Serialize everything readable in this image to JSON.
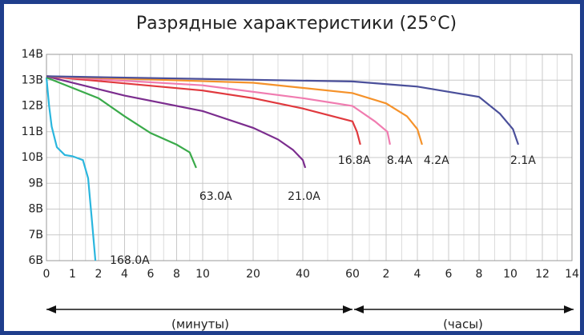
{
  "chart_data": {
    "type": "line",
    "title": "Разрядные характеристики (25°C)",
    "ylim": [
      6,
      14
    ],
    "yticks": [
      {
        "value": 6,
        "label": "6В"
      },
      {
        "value": 7,
        "label": "7В"
      },
      {
        "value": 8,
        "label": "8В"
      },
      {
        "value": 9,
        "label": "9В"
      },
      {
        "value": 10,
        "label": "10В"
      },
      {
        "value": 11,
        "label": "11В"
      },
      {
        "value": 12,
        "label": "12В"
      },
      {
        "value": 13,
        "label": "13В"
      },
      {
        "value": 14,
        "label": "14В"
      }
    ],
    "xlim": [
      0,
      840
    ],
    "xticks": [
      0,
      1,
      2,
      4,
      6,
      8,
      10,
      20,
      40,
      60,
      {
        "value": 120,
        "label": "2"
      },
      {
        "value": 240,
        "label": "4"
      },
      {
        "value": 360,
        "label": "6"
      },
      {
        "value": 480,
        "label": "8"
      },
      {
        "value": 600,
        "label": "10"
      },
      {
        "value": 720,
        "label": "12"
      },
      {
        "value": 840,
        "label": "14"
      }
    ],
    "grid": true,
    "annotations": [
      "(минуты)",
      "(часы)"
    ],
    "series": [
      {
        "name": "168.0A",
        "color": "#2ab6de",
        "x": [
          0,
          0.1,
          0.2,
          0.4,
          0.7,
          1,
          1.4,
          1.6,
          1.75,
          1.88
        ],
        "values": [
          13.1,
          12,
          11.2,
          10.4,
          10.1,
          10.05,
          9.9,
          9.2,
          7.5,
          6
        ]
      },
      {
        "name": "63.0A",
        "color": "#3aaa4a",
        "x": [
          0,
          2,
          4,
          6,
          8,
          9,
          9.5
        ],
        "values": [
          13.1,
          12.3,
          11.6,
          10.95,
          10.5,
          10.2,
          9.6
        ]
      },
      {
        "name": "21.0A",
        "color": "#7b2d8e",
        "x": [
          0,
          4,
          10,
          20,
          30,
          36,
          40,
          41
        ],
        "values": [
          13.15,
          12.4,
          11.8,
          11.15,
          10.7,
          10.3,
          9.9,
          9.6
        ]
      },
      {
        "name": "16.8A",
        "color": "#e0393e",
        "x": [
          0,
          10,
          20,
          40,
          60,
          68,
          74
        ],
        "values": [
          13.15,
          12.6,
          12.3,
          11.9,
          11.4,
          11,
          10.5
        ]
      },
      {
        "name": "8.4A",
        "color": "#f07cb0",
        "x": [
          0,
          10,
          40,
          60,
          100,
          125,
          135
        ],
        "values": [
          13.15,
          12.8,
          12.3,
          12,
          11.4,
          11,
          10.5
        ]
      },
      {
        "name": "4.2A",
        "color": "#f5922a",
        "x": [
          0,
          20,
          60,
          120,
          200,
          240,
          258
        ],
        "values": [
          13.15,
          12.9,
          12.5,
          12.1,
          11.6,
          11.1,
          10.5
        ]
      },
      {
        "name": "2.1A",
        "color": "#4a4f9a",
        "x": [
          0,
          60,
          240,
          480,
          560,
          610,
          630
        ],
        "values": [
          13.15,
          12.95,
          12.75,
          12.35,
          11.7,
          11.1,
          10.5
        ]
      }
    ]
  }
}
